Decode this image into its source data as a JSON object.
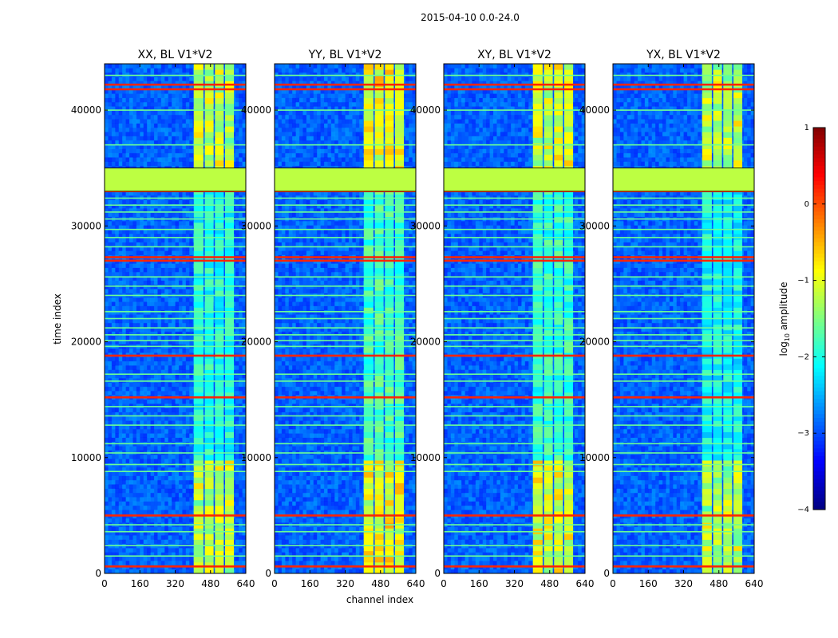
{
  "chart_data": {
    "type": "heatmap",
    "suptitle": "2015-04-10 0.0-24.0",
    "xlabel": "channel index",
    "ylabel": "time index",
    "xlim": [
      0,
      640
    ],
    "ylim": [
      0,
      44000
    ],
    "xticks": [
      0,
      160,
      320,
      480,
      640
    ],
    "yticks": [
      0,
      10000,
      20000,
      30000,
      40000
    ],
    "colorbar": {
      "label": "log10 amplitude",
      "label_base": "log",
      "label_sub": "10",
      "label_rest": " amplitude",
      "range": [
        -4,
        1
      ],
      "ticks": [
        1,
        0,
        -1,
        -2,
        -3,
        -4
      ],
      "tick_labels": [
        "1",
        "0",
        "−1",
        "−2",
        "−3",
        "−4"
      ]
    },
    "panels": [
      {
        "title": "XX, BL V1*V2",
        "pol": "XX"
      },
      {
        "title": "YY, BL V1*V2",
        "pol": "YY"
      },
      {
        "title": "XY, BL V1*V2",
        "pol": "XY"
      },
      {
        "title": "YX, BL V1*V2",
        "pol": "YX"
      }
    ],
    "flagged_block": {
      "time_range": [
        33000,
        35000
      ],
      "value": -1.2
    },
    "active_channel_range": [
      400,
      600
    ],
    "active_subbands": [
      [
        404,
        448
      ],
      [
        454,
        494
      ],
      [
        500,
        540
      ],
      [
        546,
        586
      ]
    ],
    "bright_time_ranges": [
      [
        0,
        9800
      ],
      [
        34500,
        44000
      ]
    ],
    "rfi_red_rows": [
      600,
      5000,
      15200,
      18800,
      27000,
      27300,
      33000,
      41800,
      42200
    ],
    "rfi_light_rows": [
      1500,
      2400,
      3600,
      4200,
      8800,
      9400,
      10400,
      11200,
      12800,
      13600,
      14400,
      16600,
      17200,
      19600,
      20100,
      20600,
      21200,
      22000,
      22600,
      24000,
      24800,
      25600,
      28200,
      29000,
      29700,
      30600,
      31200,
      31800,
      32400,
      37000,
      40000,
      43000
    ],
    "background_level": -2.9
  }
}
